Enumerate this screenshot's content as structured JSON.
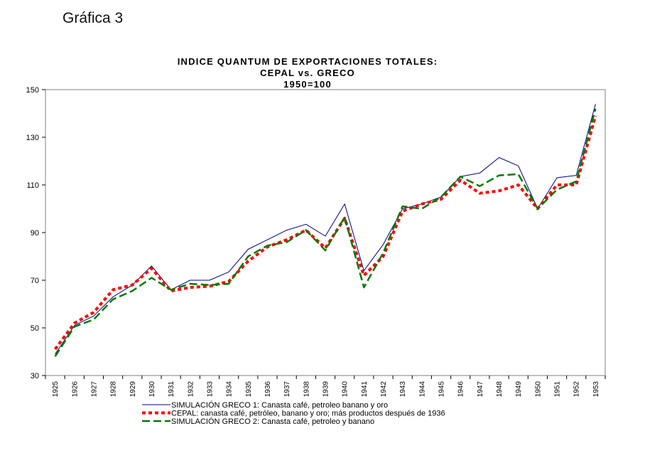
{
  "page": {
    "heading": "Gráfica 3"
  },
  "chart_data": {
    "type": "line",
    "title": [
      "INDICE QUANTUM DE EXPORTACIONES TOTALES:",
      "CEPAL vs. GRECO",
      "1950=100"
    ],
    "xlabel": "",
    "ylabel": "",
    "ylim": [
      30,
      150
    ],
    "yticks": [
      30,
      50,
      70,
      90,
      110,
      130,
      150
    ],
    "grid": false,
    "legend_position": "bottom-center",
    "categories": [
      "1925",
      "1926",
      "1927",
      "1928",
      "1929",
      "1930",
      "1931",
      "1932",
      "1933",
      "1934",
      "1935",
      "1936",
      "1937",
      "1938",
      "1939",
      "1940",
      "1941",
      "1942",
      "1943",
      "1944",
      "1945",
      "1946",
      "1947",
      "1948",
      "1949",
      "1950",
      "1951",
      "1952",
      "1953"
    ],
    "series": [
      {
        "name": "SIMULACIÓN GRECO 1: Canasta café, petroleo banano y oro",
        "color": "#000080",
        "style": "solid",
        "values": [
          39,
          51,
          55,
          63,
          68,
          76,
          66,
          70,
          70,
          73.5,
          83,
          87,
          91,
          93.5,
          88.5,
          102,
          74,
          85,
          100,
          102,
          105,
          113.5,
          115,
          121.5,
          118,
          100,
          113,
          114,
          144
        ]
      },
      {
        "name": "CEPAL: canasta café, petróleo, banano y oro; más productos después de 1936",
        "color": "#ff0000",
        "style": "dotted",
        "values": [
          41,
          52,
          56.5,
          66,
          68,
          75,
          65.5,
          67,
          67.5,
          69.5,
          78,
          84,
          87,
          91,
          83.5,
          96,
          72,
          80,
          99,
          102,
          104,
          112,
          106.5,
          107.5,
          110,
          100,
          110,
          110,
          139
        ]
      },
      {
        "name": "SIMULACIÓN GRECO 2: Canasta café, petroleo y banano",
        "color": "#007a00",
        "style": "dashed",
        "values": [
          38,
          50.5,
          53.5,
          62,
          65.5,
          71,
          66,
          68.5,
          68,
          68.5,
          80,
          84.5,
          86,
          91,
          82.5,
          96.5,
          67,
          81.5,
          101,
          100,
          105,
          113.5,
          109.5,
          114,
          114.5,
          100,
          108,
          111.5,
          142
        ]
      }
    ]
  }
}
